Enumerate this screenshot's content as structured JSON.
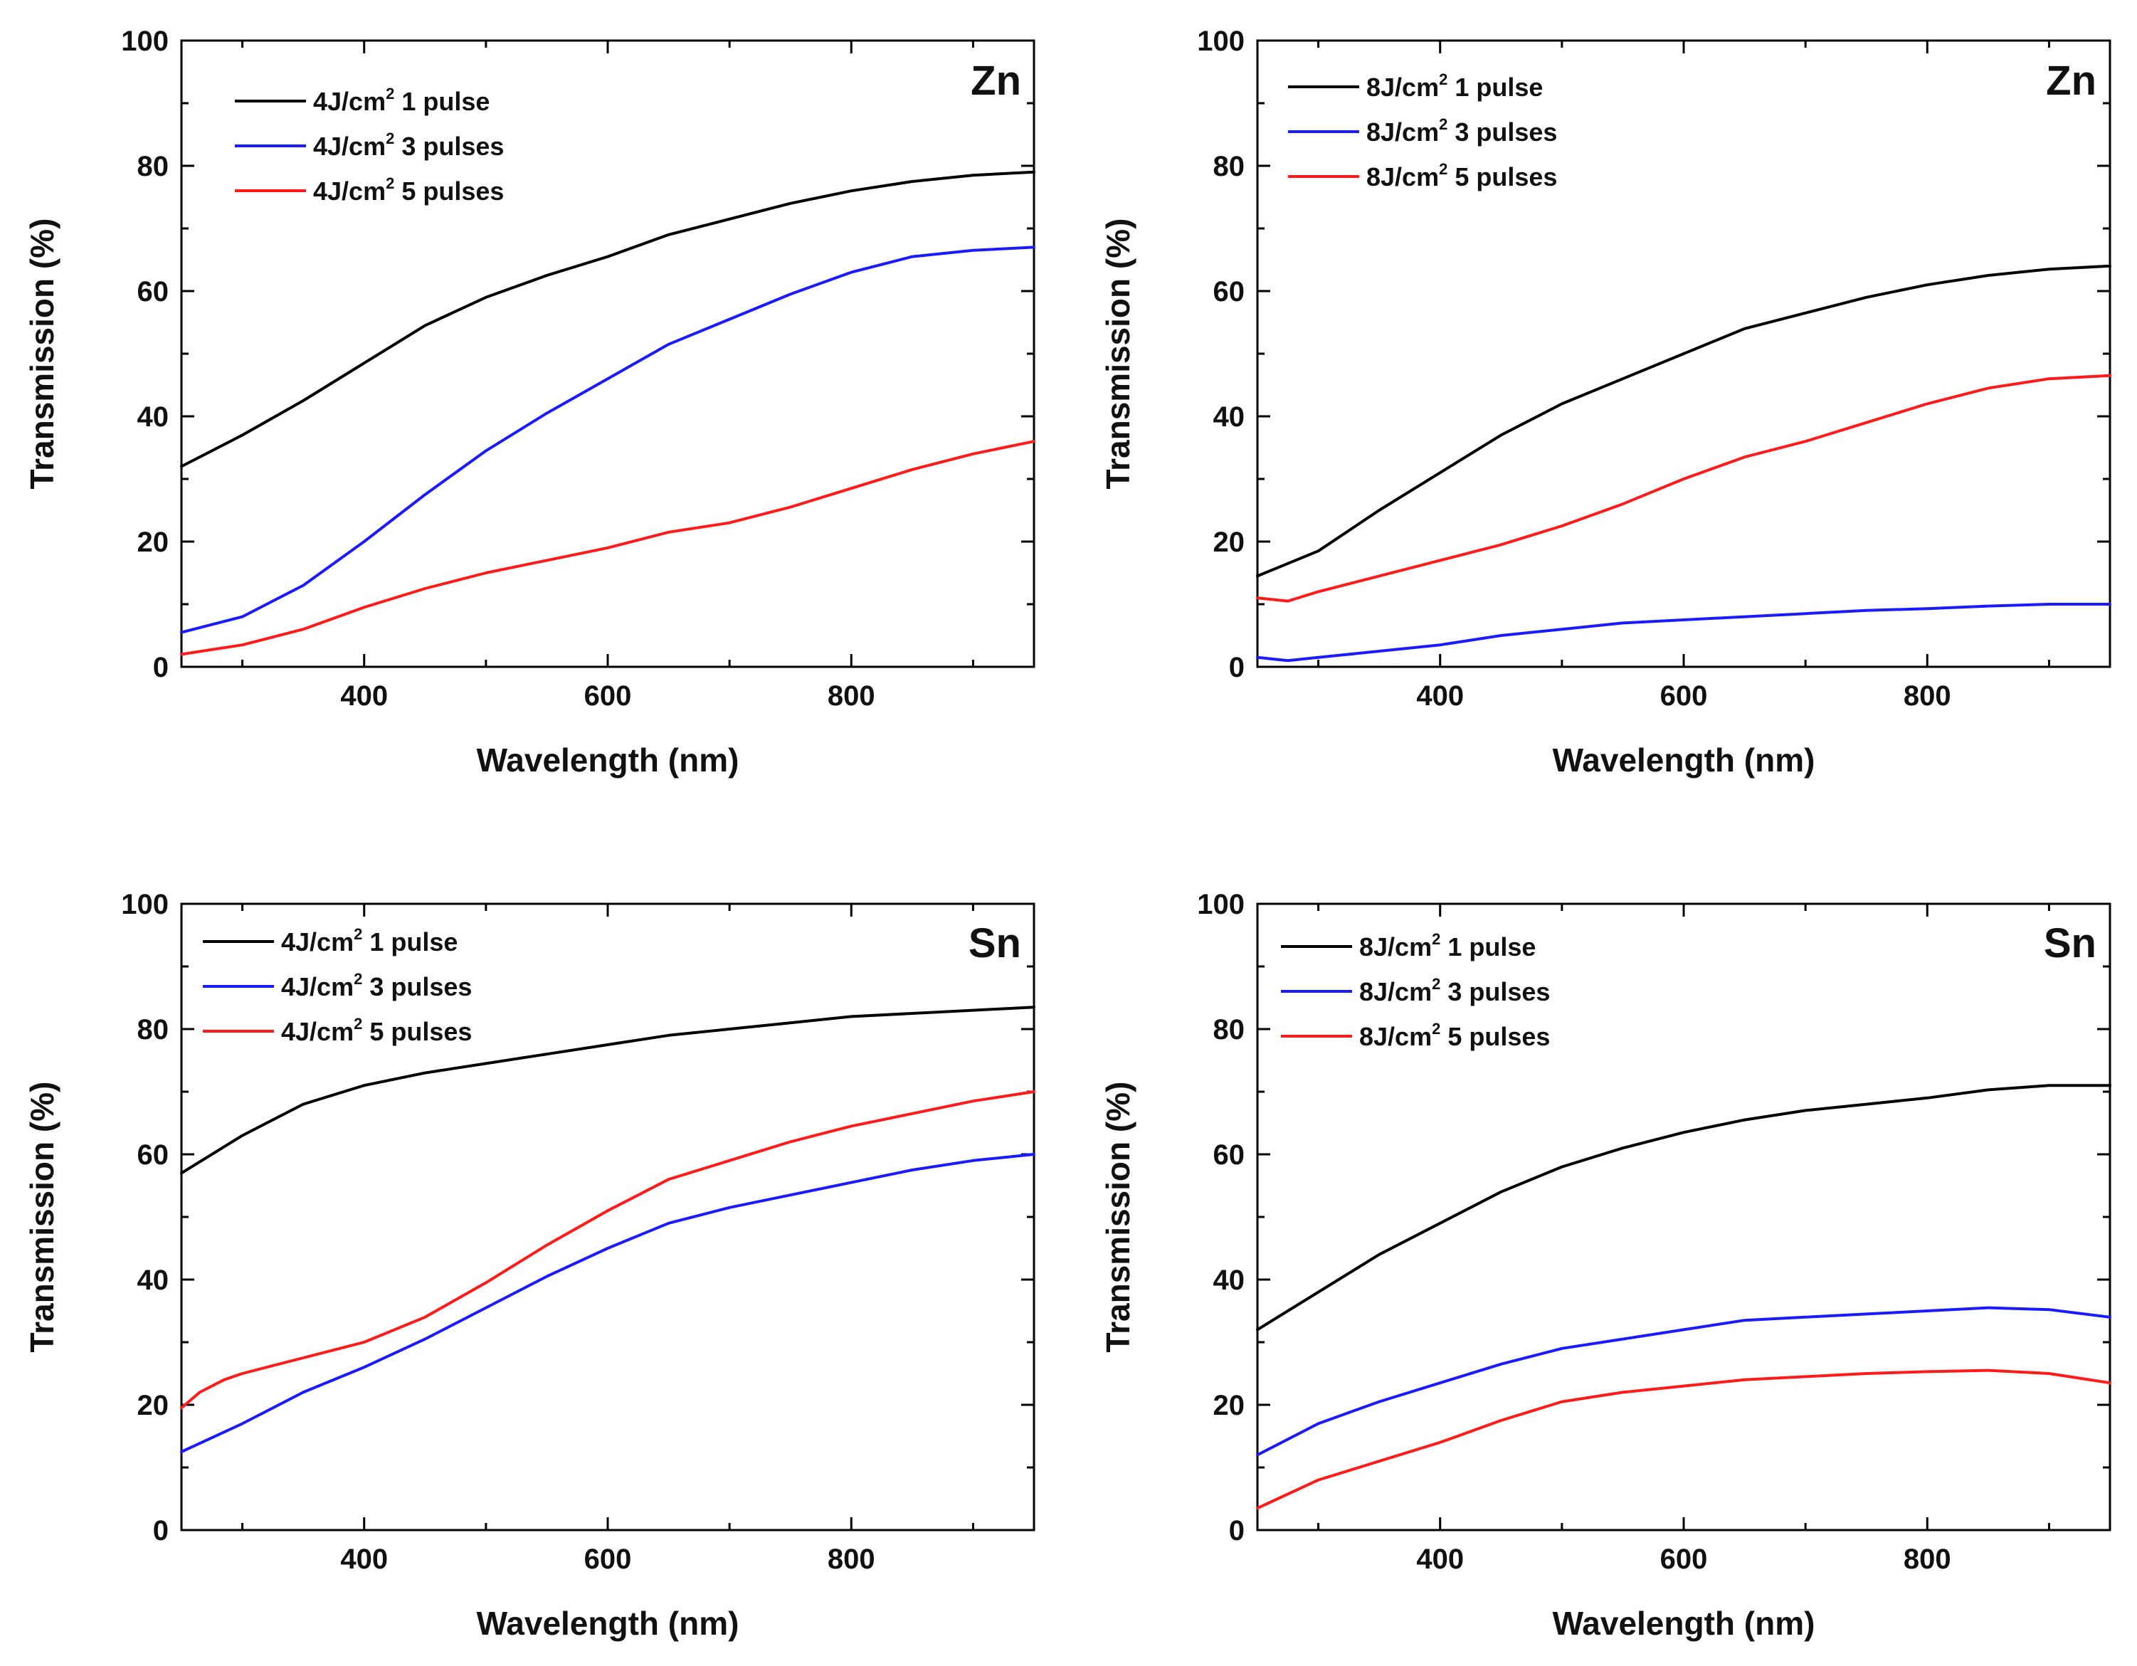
{
  "colors": {
    "black": "#000000",
    "blue": "#1a1aff",
    "red": "#ff1a1a"
  },
  "chart_data": [
    {
      "type": "line",
      "element": "Zn",
      "xlabel": "Wavelength (nm)",
      "ylabel": "Transmission (%)",
      "xlim": [
        250,
        950
      ],
      "ylim": [
        0,
        100
      ],
      "xticks": [
        400,
        600,
        800
      ],
      "yticks": [
        0,
        20,
        40,
        60,
        80,
        100
      ],
      "legend_placement": "top-left",
      "grid": false,
      "series": [
        {
          "name": "4J/cm",
          "sup": "2",
          "suffix": "1 pulse",
          "color": "black",
          "x": [
            250,
            300,
            350,
            400,
            450,
            500,
            550,
            600,
            650,
            700,
            750,
            800,
            850,
            900,
            950
          ],
          "y": [
            32,
            37,
            42.5,
            48.5,
            54.5,
            59,
            62.5,
            65.5,
            69,
            71.5,
            74,
            76,
            77.5,
            78.5,
            79
          ]
        },
        {
          "name": "4J/cm",
          "sup": "2",
          "suffix": "3 pulses",
          "color": "blue",
          "x": [
            250,
            300,
            350,
            400,
            450,
            500,
            550,
            600,
            650,
            700,
            750,
            800,
            850,
            900,
            950
          ],
          "y": [
            5.5,
            8,
            13,
            20,
            27.5,
            34.5,
            40.5,
            46,
            51.5,
            55.5,
            59.5,
            63,
            65.5,
            66.5,
            67
          ]
        },
        {
          "name": "4J/cm",
          "sup": "2",
          "suffix": "5 pulses",
          "color": "red",
          "x": [
            250,
            300,
            350,
            400,
            450,
            500,
            550,
            600,
            650,
            700,
            750,
            800,
            850,
            900,
            950
          ],
          "y": [
            2,
            3.5,
            6,
            9.5,
            12.5,
            15,
            17,
            19,
            21.5,
            23,
            25.5,
            28.5,
            31.5,
            34,
            36
          ]
        }
      ]
    },
    {
      "type": "line",
      "element": "Zn",
      "xlabel": "Wavelength (nm)",
      "ylabel": "Transmission (%)",
      "xlim": [
        250,
        950
      ],
      "ylim": [
        0,
        100
      ],
      "xticks": [
        400,
        600,
        800
      ],
      "yticks": [
        0,
        20,
        40,
        60,
        80,
        100
      ],
      "legend_placement": "top-left",
      "grid": false,
      "series": [
        {
          "name": "8J/cm",
          "sup": "2",
          "suffix": "1 pulse",
          "color": "black",
          "x": [
            250,
            300,
            350,
            400,
            450,
            500,
            550,
            600,
            650,
            700,
            750,
            800,
            850,
            900,
            950
          ],
          "y": [
            14.5,
            18.5,
            25,
            31,
            37,
            42,
            46,
            50,
            54,
            56.5,
            59,
            61,
            62.5,
            63.5,
            64
          ]
        },
        {
          "name": "8J/cm",
          "sup": "2",
          "suffix": "3 pulses",
          "color": "blue",
          "x": [
            250,
            275,
            300,
            350,
            400,
            450,
            500,
            550,
            600,
            650,
            700,
            750,
            800,
            850,
            900,
            950
          ],
          "y": [
            1.5,
            1,
            1.5,
            2.5,
            3.5,
            5,
            6,
            7,
            7.5,
            8,
            8.5,
            9,
            9.3,
            9.7,
            10,
            10
          ]
        },
        {
          "name": "8J/cm",
          "sup": "2",
          "suffix": "5 pulses",
          "color": "red",
          "x": [
            250,
            275,
            300,
            350,
            400,
            450,
            500,
            550,
            600,
            650,
            700,
            750,
            800,
            850,
            900,
            950
          ],
          "y": [
            11,
            10.5,
            12,
            14.5,
            17,
            19.5,
            22.5,
            26,
            30,
            33.5,
            36,
            39,
            42,
            44.5,
            46,
            46.5
          ]
        }
      ]
    },
    {
      "type": "line",
      "element": "Sn",
      "xlabel": "Wavelength (nm)",
      "ylabel": "Transmission (%)",
      "xlim": [
        250,
        950
      ],
      "ylim": [
        0,
        100
      ],
      "xticks": [
        400,
        600,
        800
      ],
      "yticks": [
        0,
        20,
        40,
        60,
        80,
        100
      ],
      "legend_placement": "top-left",
      "grid": false,
      "series": [
        {
          "name": "4J/cm",
          "sup": "2",
          "suffix": "1 pulse",
          "color": "black",
          "x": [
            250,
            300,
            350,
            400,
            450,
            500,
            550,
            600,
            650,
            700,
            750,
            800,
            850,
            900,
            950
          ],
          "y": [
            57,
            63,
            68,
            71,
            73,
            74.5,
            76,
            77.5,
            79,
            80,
            81,
            82,
            82.5,
            83,
            83.5
          ]
        },
        {
          "name": "4J/cm",
          "sup": "2",
          "suffix": "3 pulses",
          "color": "blue",
          "x": [
            250,
            300,
            350,
            400,
            450,
            500,
            550,
            600,
            650,
            700,
            750,
            800,
            850,
            900,
            950
          ],
          "y": [
            12.5,
            17,
            22,
            26,
            30.5,
            35.5,
            40.5,
            45,
            49,
            51.5,
            53.5,
            55.5,
            57.5,
            59,
            60
          ]
        },
        {
          "name": "4J/cm",
          "sup": "2",
          "suffix": "5 pulses",
          "color": "red",
          "x": [
            250,
            265,
            285,
            300,
            350,
            400,
            450,
            500,
            550,
            600,
            650,
            700,
            750,
            800,
            850,
            900,
            950
          ],
          "y": [
            19.5,
            22,
            24,
            25,
            27.5,
            30,
            34,
            39.5,
            45.5,
            51,
            56,
            59,
            62,
            64.5,
            66.5,
            68.5,
            70
          ]
        }
      ]
    },
    {
      "type": "line",
      "element": "Sn",
      "xlabel": "Wavelength (nm)",
      "ylabel": "Transmission (%)",
      "xlim": [
        250,
        950
      ],
      "ylim": [
        0,
        100
      ],
      "xticks": [
        400,
        600,
        800
      ],
      "yticks": [
        0,
        20,
        40,
        60,
        80,
        100
      ],
      "legend_placement": "top-left",
      "grid": false,
      "series": [
        {
          "name": "8J/cm",
          "sup": "2",
          "suffix": "1 pulse",
          "color": "black",
          "x": [
            250,
            300,
            350,
            400,
            450,
            500,
            550,
            600,
            650,
            700,
            750,
            800,
            850,
            900,
            950
          ],
          "y": [
            32,
            38,
            44,
            49,
            54,
            58,
            61,
            63.5,
            65.5,
            67,
            68,
            69,
            70.3,
            71,
            71
          ]
        },
        {
          "name": "8J/cm",
          "sup": "2",
          "suffix": "3 pulses",
          "color": "blue",
          "x": [
            250,
            300,
            350,
            400,
            450,
            500,
            550,
            600,
            650,
            700,
            750,
            800,
            850,
            900,
            950
          ],
          "y": [
            12,
            17,
            20.5,
            23.5,
            26.5,
            29,
            30.5,
            32,
            33.5,
            34,
            34.5,
            35,
            35.5,
            35.2,
            34
          ]
        },
        {
          "name": "8J/cm",
          "sup": "2",
          "suffix": "5 pulses",
          "color": "red",
          "x": [
            250,
            300,
            350,
            400,
            450,
            500,
            550,
            600,
            650,
            700,
            750,
            800,
            850,
            900,
            950
          ],
          "y": [
            3.5,
            8,
            11,
            14,
            17.5,
            20.5,
            22,
            23,
            24,
            24.5,
            25,
            25.3,
            25.5,
            25,
            23.5
          ]
        }
      ]
    }
  ]
}
